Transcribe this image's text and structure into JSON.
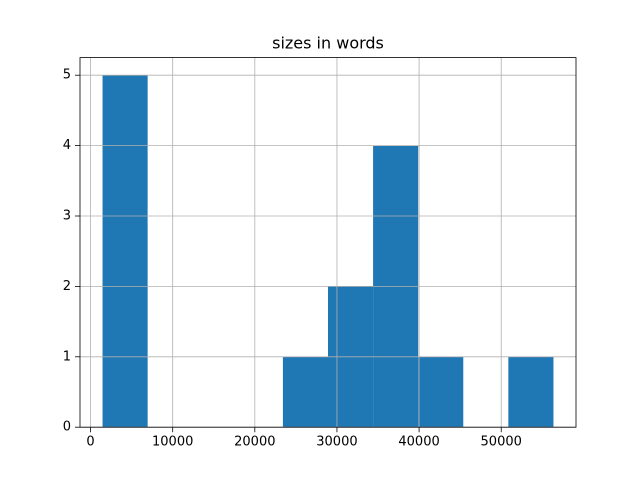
{
  "chart_data": {
    "type": "histogram",
    "title": "sizes in words",
    "bins": [
      1460,
      6950,
      12440,
      17930,
      23420,
      28910,
      34400,
      39890,
      45380,
      50870,
      56360
    ],
    "values": [
      5,
      0,
      0,
      0,
      1,
      2,
      4,
      1,
      0,
      1
    ],
    "color": "#1f77b4",
    "xlim": [
      -1285,
      59105
    ],
    "xticks": [
      0,
      10000,
      20000,
      30000,
      40000,
      50000
    ],
    "ylim": [
      0,
      5.25
    ],
    "yticks": [
      0,
      1,
      2,
      3,
      4,
      5
    ],
    "grid": true
  }
}
